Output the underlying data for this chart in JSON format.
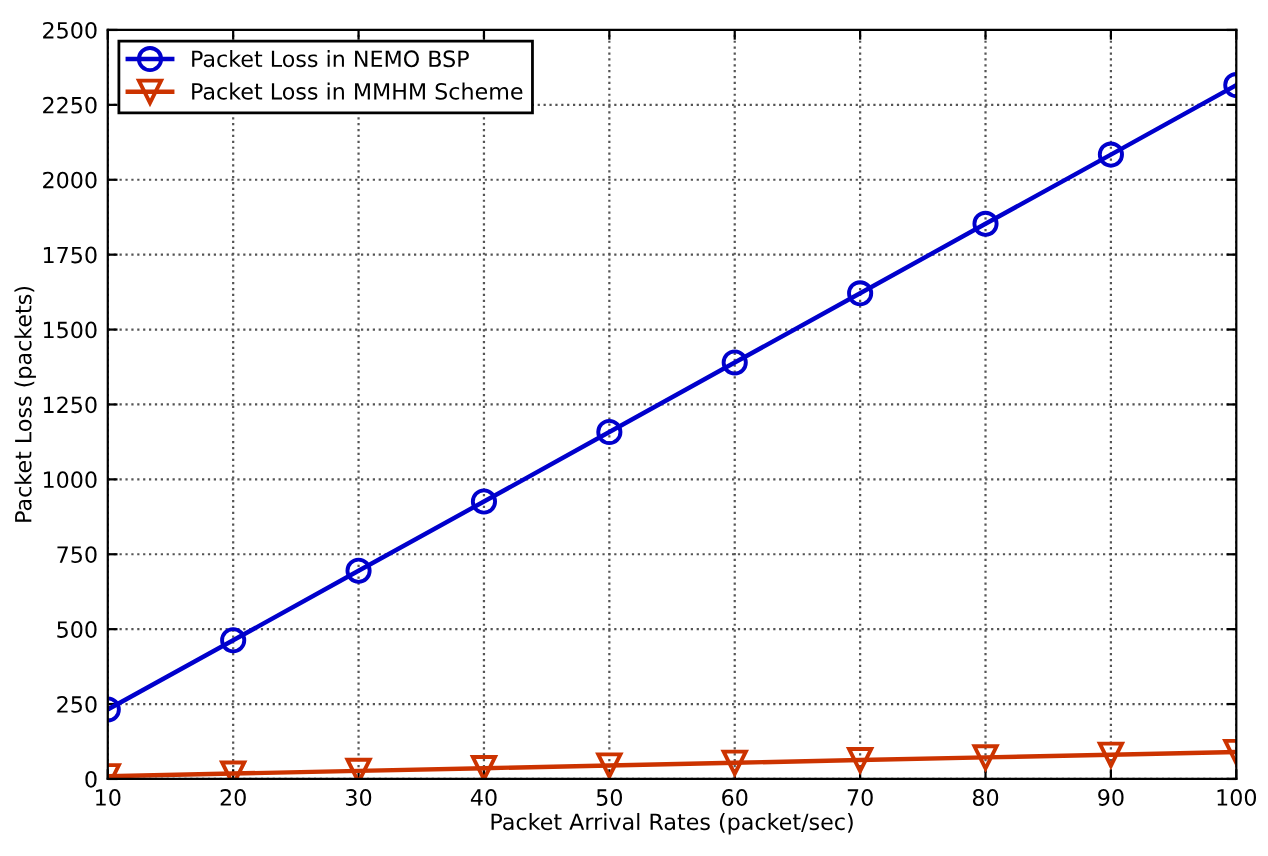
{
  "chart_data": {
    "type": "line",
    "xlabel": "Packet Arrival Rates (packet/sec)",
    "ylabel": "Packet Loss (packets)",
    "x": [
      10,
      20,
      30,
      40,
      50,
      60,
      70,
      80,
      90,
      100
    ],
    "series": [
      {
        "name": "Packet Loss in NEMO BSP",
        "color": "#0000cc",
        "marker": "circle",
        "values": [
          232,
          463,
          695,
          926,
          1158,
          1390,
          1621,
          1853,
          2084,
          2316
        ]
      },
      {
        "name": "Packet Loss in MMHM Scheme",
        "color": "#cc3300",
        "marker": "triangle",
        "values": [
          9,
          18,
          27,
          36,
          45,
          54,
          63,
          72,
          81,
          90
        ]
      }
    ],
    "xlim": [
      10,
      100
    ],
    "xticks": [
      10,
      20,
      30,
      40,
      50,
      60,
      70,
      80,
      90,
      100
    ],
    "ylim": [
      0,
      2500
    ],
    "yticks": [
      0,
      250,
      500,
      750,
      1000,
      1250,
      1500,
      1750,
      2000,
      2250,
      2500
    ],
    "grid": true,
    "legend": "top left",
    "line_style": "solid"
  }
}
